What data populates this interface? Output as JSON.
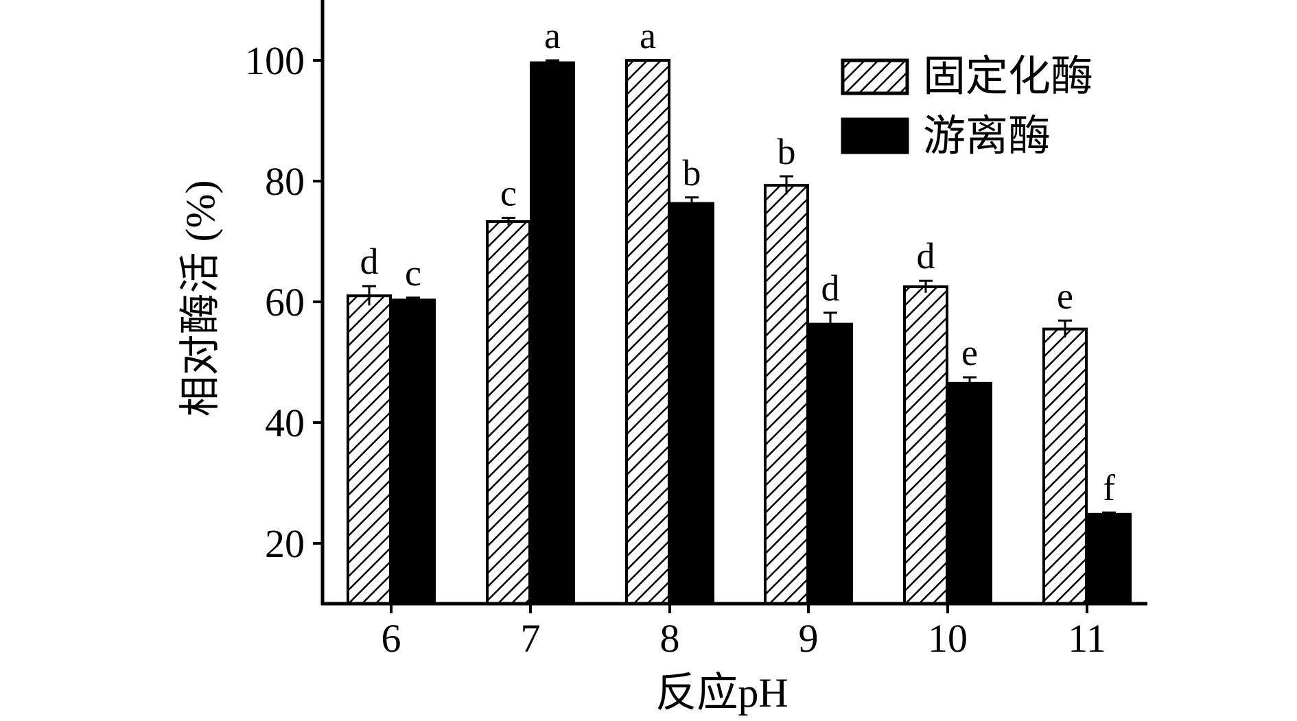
{
  "chart_data": {
    "type": "bar",
    "title": "",
    "xlabel": "反应pH",
    "ylabel": "相对酶活 (%)",
    "categories": [
      "6",
      "7",
      "8",
      "9",
      "10",
      "11"
    ],
    "ylim": [
      10,
      110
    ],
    "yticks": [
      "20",
      "40",
      "60",
      "80",
      "100"
    ],
    "grid": false,
    "legend_position": "top-right",
    "series": [
      {
        "name": "固定化酶",
        "fill": "hatched",
        "color": "#000000",
        "values": [
          61.0,
          73.3,
          100.0,
          79.3,
          62.5,
          55.5
        ],
        "errors": [
          1.6,
          0.6,
          0.0,
          1.5,
          1.0,
          1.4
        ],
        "labels": [
          "d",
          "c",
          "a",
          "b",
          "d",
          "e"
        ]
      },
      {
        "name": "游离酶",
        "fill": "solid",
        "color": "#000000",
        "values": [
          60.3,
          99.6,
          76.3,
          56.3,
          46.5,
          24.8
        ],
        "errors": [
          0.4,
          0.4,
          1.0,
          1.9,
          1.0,
          0.3
        ],
        "labels": [
          "c",
          "a",
          "b",
          "d",
          "e",
          "f"
        ]
      }
    ]
  }
}
